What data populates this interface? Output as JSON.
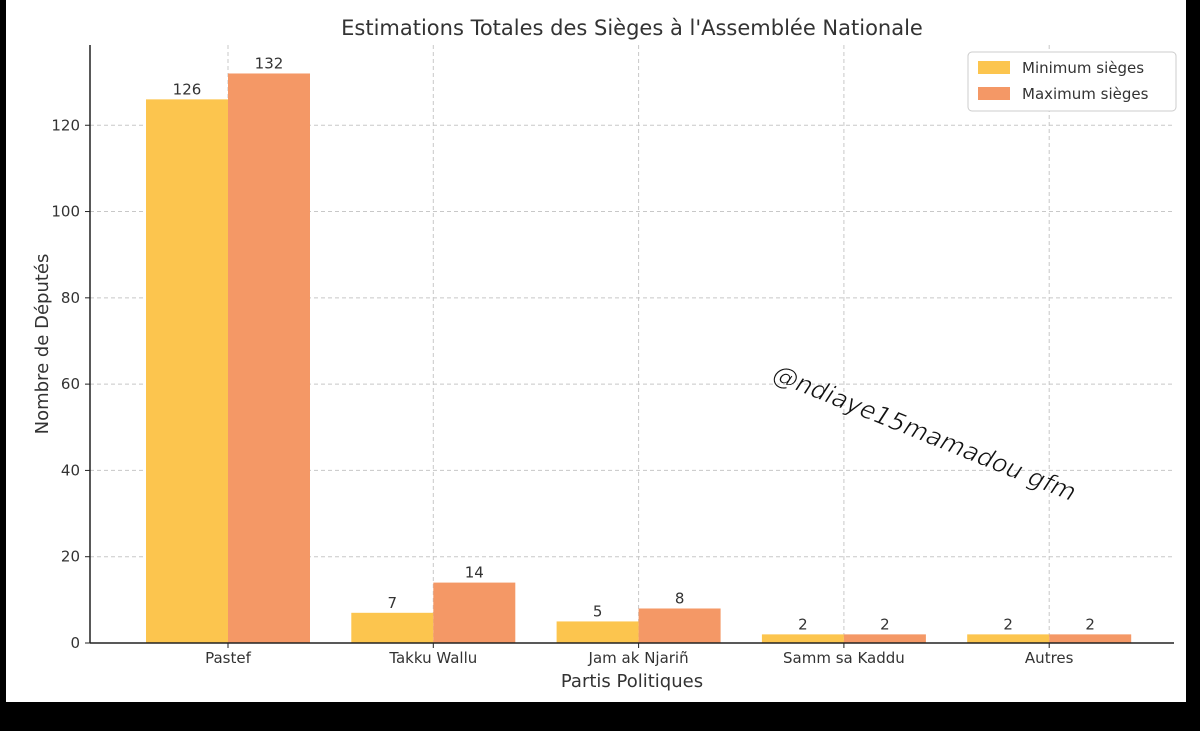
{
  "chart_data": {
    "type": "bar",
    "title": "Estimations Totales des Sièges à l'Assemblée Nationale",
    "xlabel": "Partis Politiques",
    "ylabel": "Nombre de Députés",
    "categories": [
      "Pastef",
      "Takku Wallu",
      "Jam ak Njariñ",
      "Samm sa Kaddu",
      "Autres"
    ],
    "series": [
      {
        "name": "Minimum sièges",
        "values": [
          126,
          7,
          5,
          2,
          2
        ],
        "color": "#FCC54E"
      },
      {
        "name": "Maximum sièges",
        "values": [
          132,
          14,
          8,
          2,
          2
        ],
        "color": "#F49866"
      }
    ],
    "ylim": [
      0,
      138.6
    ],
    "yticks": [
      0,
      20,
      40,
      60,
      80,
      100,
      120
    ],
    "grid": true,
    "legend_position": "top-right",
    "watermark": "@ndiaye15mamadou gfm"
  }
}
